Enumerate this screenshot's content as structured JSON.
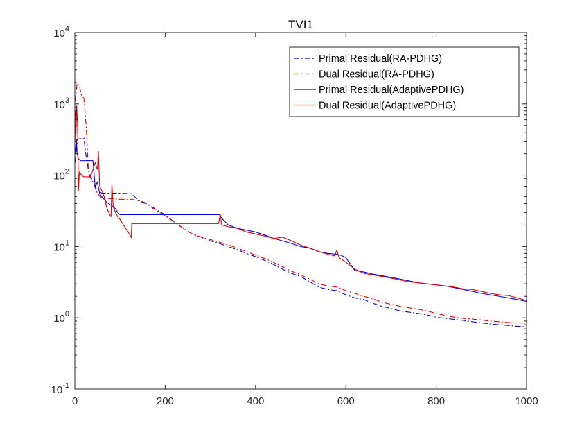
{
  "chart_data": {
    "type": "line",
    "title": "TVI1",
    "xlabel": "",
    "ylabel": "",
    "xlim": [
      0,
      1000
    ],
    "ylim_exp": [
      -1,
      4
    ],
    "yscale": "log",
    "grid": false,
    "legend_position": "top-right",
    "x_ticks": [
      "0",
      "200",
      "400",
      "600",
      "800",
      "1000"
    ],
    "y_ticks": [
      {
        "base": "10",
        "exp": "-1"
      },
      {
        "base": "10",
        "exp": "0"
      },
      {
        "base": "10",
        "exp": "1"
      },
      {
        "base": "10",
        "exp": "2"
      },
      {
        "base": "10",
        "exp": "3"
      },
      {
        "base": "10",
        "exp": "4"
      }
    ],
    "series": [
      {
        "name": "Primal Residual(RA-PDHG)",
        "color": "#0000cc",
        "dash": "dashdot",
        "points": [
          [
            1,
            150
          ],
          [
            5,
            320
          ],
          [
            20,
            330
          ],
          [
            25,
            180
          ],
          [
            32,
            100
          ],
          [
            40,
            80
          ],
          [
            50,
            60
          ],
          [
            60,
            56
          ],
          [
            80,
            56
          ],
          [
            100,
            56
          ],
          [
            125,
            55
          ],
          [
            140,
            45
          ],
          [
            160,
            40
          ],
          [
            180,
            33
          ],
          [
            200,
            28
          ],
          [
            220,
            22
          ],
          [
            240,
            18
          ],
          [
            260,
            15
          ],
          [
            280,
            13.5
          ],
          [
            300,
            12
          ],
          [
            320,
            11
          ],
          [
            340,
            10
          ],
          [
            360,
            9
          ],
          [
            380,
            8
          ],
          [
            400,
            7.2
          ],
          [
            420,
            6.4
          ],
          [
            440,
            5.6
          ],
          [
            460,
            4.8
          ],
          [
            480,
            4.2
          ],
          [
            500,
            3.8
          ],
          [
            520,
            3.2
          ],
          [
            540,
            2.7
          ],
          [
            560,
            2.5
          ],
          [
            580,
            2.4
          ],
          [
            600,
            2.1
          ],
          [
            620,
            1.9
          ],
          [
            640,
            1.8
          ],
          [
            660,
            1.6
          ],
          [
            680,
            1.45
          ],
          [
            700,
            1.35
          ],
          [
            720,
            1.25
          ],
          [
            740,
            1.2
          ],
          [
            760,
            1.15
          ],
          [
            780,
            1.1
          ],
          [
            800,
            1.02
          ],
          [
            820,
            0.98
          ],
          [
            840,
            0.95
          ],
          [
            860,
            0.92
          ],
          [
            880,
            0.88
          ],
          [
            900,
            0.85
          ],
          [
            920,
            0.82
          ],
          [
            940,
            0.8
          ],
          [
            960,
            0.78
          ],
          [
            980,
            0.76
          ],
          [
            1000,
            0.75
          ]
        ]
      },
      {
        "name": "Dual Residual(RA-PDHG)",
        "color": "#dd0000",
        "dash": "dashdot",
        "points": [
          [
            1,
            1100
          ],
          [
            5,
            1950
          ],
          [
            10,
            1800
          ],
          [
            15,
            1300
          ],
          [
            20,
            1200
          ],
          [
            25,
            500
          ],
          [
            30,
            120
          ],
          [
            40,
            80
          ],
          [
            50,
            55
          ],
          [
            60,
            48
          ],
          [
            80,
            47
          ],
          [
            100,
            46
          ],
          [
            125,
            46
          ],
          [
            140,
            44
          ],
          [
            160,
            39
          ],
          [
            180,
            32
          ],
          [
            200,
            27
          ],
          [
            220,
            22
          ],
          [
            240,
            18
          ],
          [
            260,
            15
          ],
          [
            280,
            13.5
          ],
          [
            300,
            12.5
          ],
          [
            320,
            11.5
          ],
          [
            340,
            10.5
          ],
          [
            360,
            9.5
          ],
          [
            380,
            8.5
          ],
          [
            400,
            7.6
          ],
          [
            420,
            6.8
          ],
          [
            440,
            6
          ],
          [
            460,
            5.2
          ],
          [
            480,
            4.5
          ],
          [
            500,
            4
          ],
          [
            520,
            3.5
          ],
          [
            540,
            3
          ],
          [
            560,
            2.8
          ],
          [
            580,
            2.7
          ],
          [
            600,
            2.4
          ],
          [
            620,
            2.2
          ],
          [
            640,
            2
          ],
          [
            660,
            1.85
          ],
          [
            680,
            1.65
          ],
          [
            700,
            1.55
          ],
          [
            720,
            1.45
          ],
          [
            740,
            1.38
          ],
          [
            760,
            1.32
          ],
          [
            780,
            1.25
          ],
          [
            800,
            1.15
          ],
          [
            820,
            1.08
          ],
          [
            840,
            1.02
          ],
          [
            860,
            0.98
          ],
          [
            880,
            0.96
          ],
          [
            900,
            0.93
          ],
          [
            920,
            0.9
          ],
          [
            940,
            0.88
          ],
          [
            960,
            0.86
          ],
          [
            980,
            0.85
          ],
          [
            1000,
            0.84
          ]
        ]
      },
      {
        "name": "Primal Residual(AdaptivePDHG)",
        "color": "#0000ee",
        "dash": "solid",
        "points": [
          [
            1,
            200
          ],
          [
            3,
            320
          ],
          [
            5,
            200
          ],
          [
            8,
            170
          ],
          [
            12,
            160
          ],
          [
            20,
            160
          ],
          [
            40,
            160
          ],
          [
            45,
            70
          ],
          [
            50,
            80
          ],
          [
            55,
            55
          ],
          [
            60,
            50
          ],
          [
            70,
            42
          ],
          [
            80,
            38
          ],
          [
            90,
            34
          ],
          [
            95,
            30
          ],
          [
            100,
            28
          ],
          [
            200,
            28
          ],
          [
            320,
            28
          ],
          [
            325,
            25
          ],
          [
            340,
            20
          ],
          [
            360,
            18
          ],
          [
            380,
            17
          ],
          [
            400,
            16
          ],
          [
            420,
            14.5
          ],
          [
            440,
            13
          ],
          [
            460,
            12
          ],
          [
            480,
            11
          ],
          [
            500,
            10
          ],
          [
            520,
            9.5
          ],
          [
            540,
            8.5
          ],
          [
            560,
            8
          ],
          [
            580,
            7.8
          ],
          [
            590,
            7.5
          ],
          [
            600,
            7
          ],
          [
            620,
            4.6
          ],
          [
            640,
            4.4
          ],
          [
            660,
            4.1
          ],
          [
            680,
            3.9
          ],
          [
            700,
            3.7
          ],
          [
            720,
            3.5
          ],
          [
            740,
            3.3
          ],
          [
            760,
            3.1
          ],
          [
            780,
            3
          ],
          [
            800,
            2.9
          ],
          [
            820,
            2.8
          ],
          [
            840,
            2.65
          ],
          [
            860,
            2.5
          ],
          [
            880,
            2.35
          ],
          [
            900,
            2.2
          ],
          [
            920,
            2.1
          ],
          [
            940,
            2
          ],
          [
            960,
            1.9
          ],
          [
            980,
            1.8
          ],
          [
            1000,
            1.7
          ]
        ]
      },
      {
        "name": "Dual Residual(AdaptivePDHG)",
        "color": "#dd0000",
        "dash": "solid",
        "points": [
          [
            1,
            800
          ],
          [
            2,
            300
          ],
          [
            4,
            950
          ],
          [
            6,
            500
          ],
          [
            8,
            60
          ],
          [
            10,
            110
          ],
          [
            15,
            100
          ],
          [
            20,
            95
          ],
          [
            35,
            95
          ],
          [
            45,
            150
          ],
          [
            48,
            130
          ],
          [
            50,
            120
          ],
          [
            52,
            220
          ],
          [
            55,
            70
          ],
          [
            60,
            60
          ],
          [
            65,
            50
          ],
          [
            70,
            36
          ],
          [
            75,
            30
          ],
          [
            80,
            26
          ],
          [
            82,
            75
          ],
          [
            85,
            36
          ],
          [
            90,
            30
          ],
          [
            95,
            26
          ],
          [
            100,
            24
          ],
          [
            110,
            19
          ],
          [
            118,
            16
          ],
          [
            125,
            13.5
          ],
          [
            126,
            21
          ],
          [
            200,
            21
          ],
          [
            318,
            21
          ],
          [
            322,
            28
          ],
          [
            325,
            20
          ],
          [
            340,
            19
          ],
          [
            360,
            18
          ],
          [
            380,
            16
          ],
          [
            400,
            15
          ],
          [
            420,
            14
          ],
          [
            440,
            13
          ],
          [
            460,
            13.5
          ],
          [
            480,
            12
          ],
          [
            500,
            10.5
          ],
          [
            520,
            9.5
          ],
          [
            540,
            8.5
          ],
          [
            560,
            7.8
          ],
          [
            575,
            7.4
          ],
          [
            580,
            8.8
          ],
          [
            585,
            7
          ],
          [
            600,
            6
          ],
          [
            620,
            4.8
          ],
          [
            640,
            4.2
          ],
          [
            660,
            4
          ],
          [
            680,
            3.8
          ],
          [
            700,
            3.6
          ],
          [
            720,
            3.4
          ],
          [
            740,
            3.2
          ],
          [
            760,
            3.1
          ],
          [
            780,
            3
          ],
          [
            800,
            2.9
          ],
          [
            820,
            2.8
          ],
          [
            840,
            2.7
          ],
          [
            860,
            2.55
          ],
          [
            880,
            2.5
          ],
          [
            900,
            2.35
          ],
          [
            920,
            2.2
          ],
          [
            940,
            2.1
          ],
          [
            960,
            2.05
          ],
          [
            980,
            1.9
          ],
          [
            1000,
            1.75
          ]
        ]
      }
    ]
  }
}
